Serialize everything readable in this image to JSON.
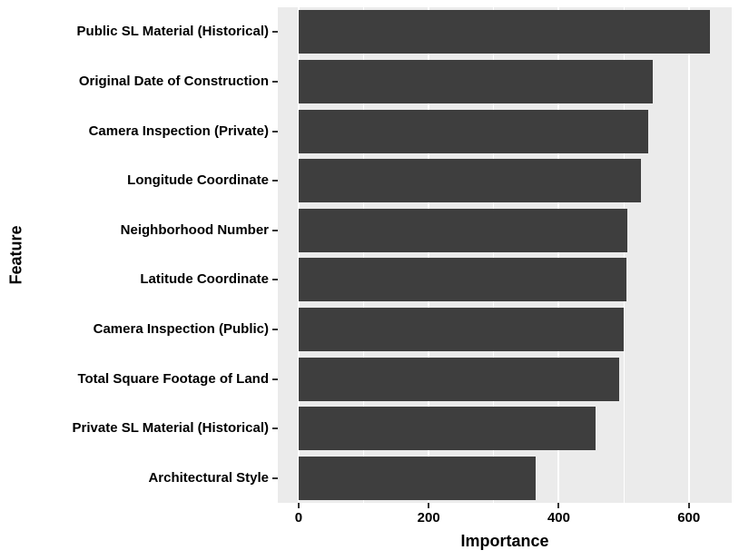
{
  "chart_data": {
    "type": "bar",
    "orientation": "horizontal",
    "title": "",
    "xlabel": "Importance",
    "ylabel": "Feature",
    "categories": [
      "Public SL Material (Historical)",
      "Original Date of Construction",
      "Camera Inspection (Private)",
      "Longitude Coordinate",
      "Neighborhood Number",
      "Latitude Coordinate",
      "Camera Inspection (Public)",
      "Total Square Footage of Land",
      "Private SL Material (Historical)",
      "Architectural Style"
    ],
    "values": [
      632,
      545,
      537,
      527,
      505,
      504,
      500,
      493,
      457,
      365
    ],
    "x_ticks": [
      0,
      200,
      400,
      600
    ],
    "x_minor_ticks": [
      100,
      300,
      500
    ],
    "xlim": [
      -32,
      666
    ],
    "grid": true,
    "legend": "none",
    "colors": {
      "bar": "#3E3E3E",
      "panel_background": "#EBEBEB",
      "gridline": "#FFFFFF",
      "text": "#000000",
      "tick": "#333333"
    }
  }
}
